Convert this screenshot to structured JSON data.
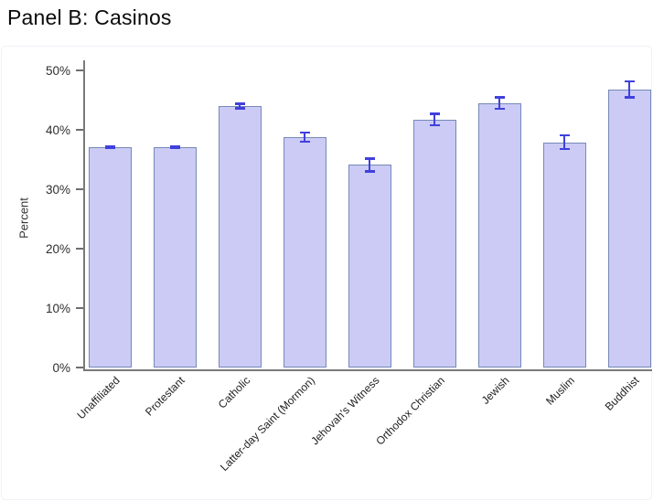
{
  "title": "Panel B: Casinos",
  "chart_data": {
    "type": "bar",
    "title": "Panel B: Casinos",
    "categories": [
      "Unaffiliated",
      "Protestant",
      "Catholic",
      "Latter-day Saint (Mormon)",
      "Jehovah's Witness",
      "Orthodox Christian",
      "Jewish",
      "Muslim",
      "Buddhist"
    ],
    "values": [
      37.1,
      37.1,
      44.0,
      38.8,
      34.1,
      41.7,
      44.5,
      37.9,
      46.8
    ],
    "errors": [
      0.2,
      0.2,
      0.4,
      0.8,
      1.1,
      1.0,
      1.0,
      1.2,
      1.4
    ],
    "xlabel": "",
    "ylabel": "Percent",
    "ylim": [
      0,
      50
    ],
    "yticks": [
      0,
      10,
      20,
      30,
      40,
      50
    ],
    "ytick_labels": [
      "0%",
      "10%",
      "20%",
      "30%",
      "40%",
      "50%"
    ],
    "grid": false,
    "legend": null,
    "colors": {
      "bar_fill": "#cbcbf6",
      "bar_border": "#7689b6",
      "error_bar": "#4040dd",
      "axis": "#7a7a7a",
      "tick_text": "#2e2e2e",
      "background": "#ffffff"
    }
  }
}
